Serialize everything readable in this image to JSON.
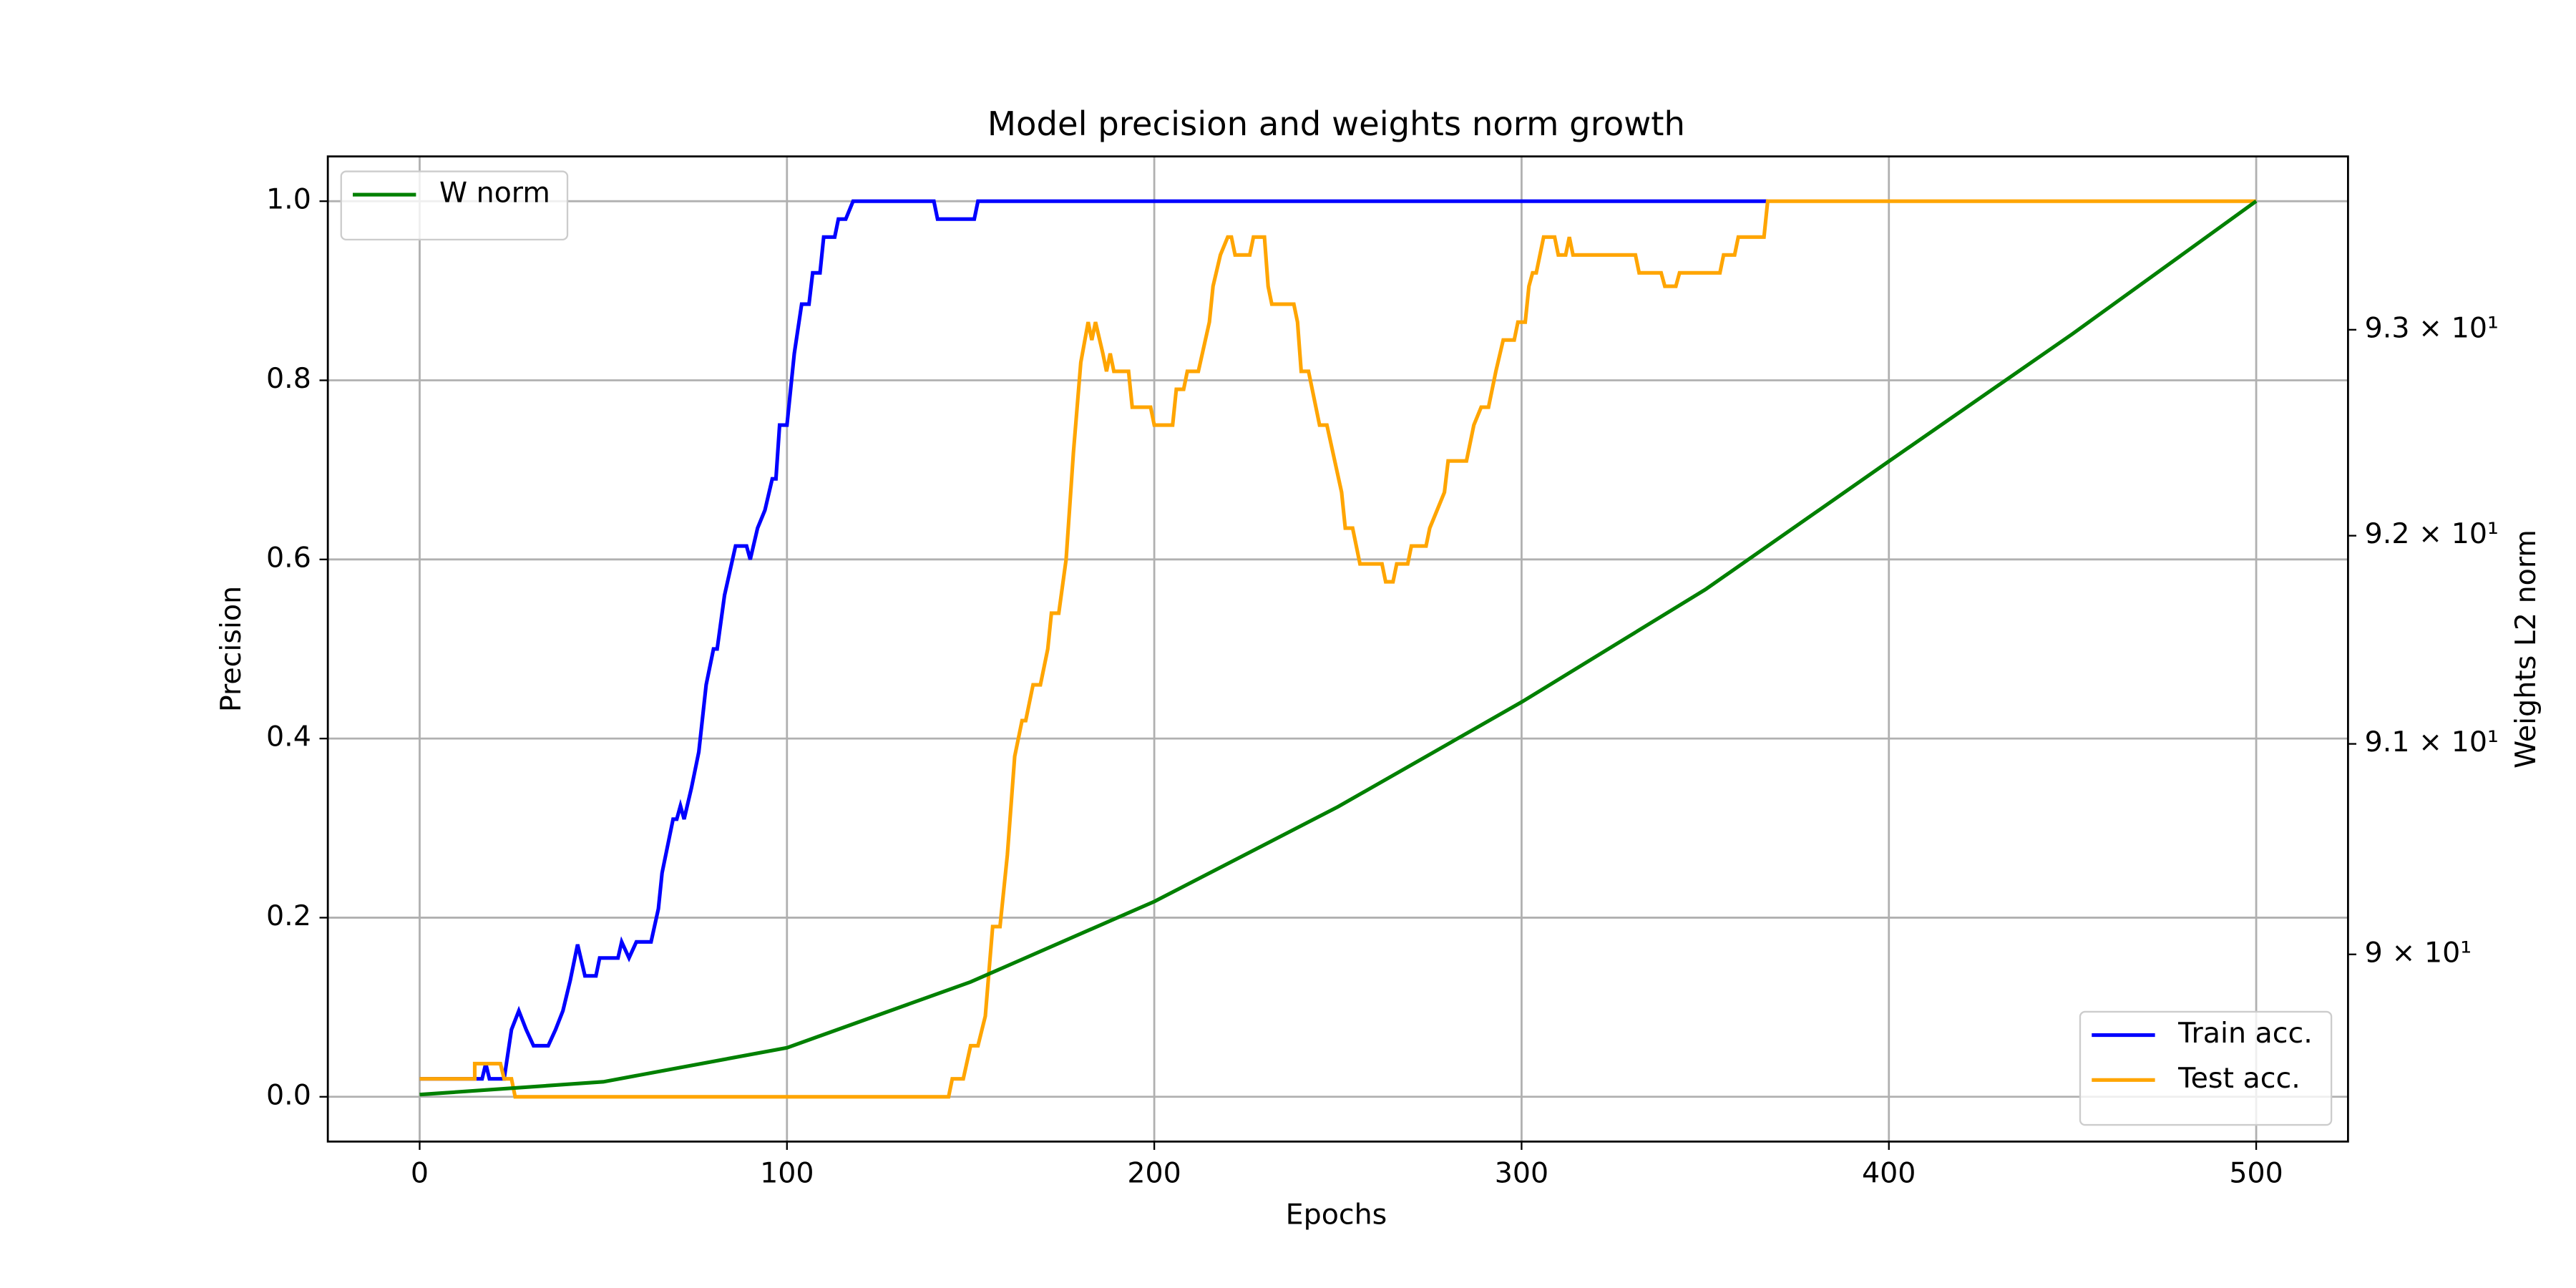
{
  "chart_data": {
    "type": "line",
    "title": "Model precision and weights norm growth",
    "x_label": "Epochs",
    "y_label": "Precision",
    "y2_label": "Weights L2 norm",
    "xlim": [
      -25,
      525
    ],
    "xticks": [
      0,
      100,
      200,
      300,
      400,
      500
    ],
    "ylim": [
      -0.05,
      1.05
    ],
    "yticks": [
      {
        "value": 0,
        "label": "0.0"
      },
      0.2,
      0.4,
      0.6,
      0.8,
      {
        "value": 1,
        "label": "1.0"
      }
    ],
    "y2lim": [
      89.12,
      93.85
    ],
    "y2scale": "log",
    "y2ticks": [
      {
        "value": 90,
        "label": "9 × 10¹"
      },
      {
        "value": 91,
        "label": "9.1 × 10¹"
      },
      {
        "value": 92,
        "label": "9.2 × 10¹"
      },
      {
        "value": 93,
        "label": "9.3 × 10¹"
      }
    ],
    "grid": true,
    "legend_y": "lower right",
    "legend_y2": "upper left",
    "series": [
      {
        "name": "Train acc.",
        "color": "#0000ff",
        "axis": "y",
        "x": [
          0,
          15,
          17,
          18,
          19,
          23,
          25,
          27,
          29,
          31,
          35,
          37,
          39,
          41,
          43,
          45,
          48,
          49,
          54,
          55,
          57,
          59,
          63,
          65,
          66,
          69,
          70,
          71,
          72,
          74,
          76,
          78,
          80,
          81,
          83,
          86,
          89,
          90,
          92,
          94,
          96,
          97,
          98,
          100,
          101,
          102,
          104,
          106,
          107,
          109,
          110,
          113,
          114,
          116,
          118,
          140,
          141,
          151,
          152,
          367
        ],
        "values": [
          0.02,
          0.02,
          0.02,
          0.037,
          0.02,
          0.02,
          0.075,
          0.096,
          0.075,
          0.057,
          0.057,
          0.075,
          0.096,
          0.13,
          0.17,
          0.135,
          0.135,
          0.155,
          0.155,
          0.173,
          0.155,
          0.173,
          0.173,
          0.21,
          0.25,
          0.31,
          0.31,
          0.325,
          0.31,
          0.345,
          0.385,
          0.46,
          0.5,
          0.5,
          0.56,
          0.615,
          0.615,
          0.6,
          0.635,
          0.655,
          0.69,
          0.69,
          0.75,
          0.75,
          0.79,
          0.83,
          0.885,
          0.885,
          0.92,
          0.92,
          0.96,
          0.96,
          0.98,
          0.98,
          1.0,
          1.0,
          0.98,
          0.98,
          1.0,
          1.0
        ]
      },
      {
        "name": "Test acc.",
        "color": "#ffa500",
        "axis": "y",
        "x": [
          0,
          15,
          15,
          22,
          23,
          25,
          26,
          144,
          145,
          148,
          150,
          152,
          154,
          156,
          158,
          160,
          162,
          164,
          165,
          167,
          169,
          171,
          172,
          174,
          176,
          178,
          180,
          182,
          183,
          184,
          186,
          187,
          188,
          189,
          193,
          194,
          199,
          200,
          205,
          206,
          208,
          209,
          212,
          215,
          216,
          218,
          220,
          221,
          222,
          226,
          227,
          230,
          231,
          232,
          238,
          239,
          240,
          242,
          244,
          245,
          247,
          251,
          252,
          254,
          256,
          262,
          263,
          265,
          266,
          269,
          270,
          274,
          275,
          277,
          279,
          280,
          285,
          287,
          289,
          291,
          292,
          293,
          295,
          298,
          299,
          301,
          302,
          303,
          304,
          306,
          309,
          310,
          312,
          313,
          314,
          331,
          332,
          338,
          339,
          342,
          343,
          354,
          355,
          358,
          359,
          366,
          367,
          500
        ],
        "values": [
          0.02,
          0.02,
          0.037,
          0.037,
          0.02,
          0.02,
          0.0,
          0.0,
          0.02,
          0.02,
          0.057,
          0.057,
          0.09,
          0.19,
          0.19,
          0.27,
          0.38,
          0.42,
          0.42,
          0.46,
          0.46,
          0.5,
          0.54,
          0.54,
          0.6,
          0.72,
          0.82,
          0.865,
          0.845,
          0.865,
          0.83,
          0.81,
          0.83,
          0.81,
          0.81,
          0.77,
          0.77,
          0.75,
          0.75,
          0.79,
          0.79,
          0.81,
          0.81,
          0.865,
          0.905,
          0.94,
          0.96,
          0.96,
          0.94,
          0.94,
          0.96,
          0.96,
          0.905,
          0.885,
          0.885,
          0.865,
          0.81,
          0.81,
          0.77,
          0.75,
          0.75,
          0.675,
          0.635,
          0.635,
          0.595,
          0.595,
          0.575,
          0.575,
          0.595,
          0.595,
          0.615,
          0.615,
          0.635,
          0.655,
          0.675,
          0.71,
          0.71,
          0.75,
          0.77,
          0.77,
          0.79,
          0.81,
          0.845,
          0.845,
          0.865,
          0.865,
          0.905,
          0.92,
          0.92,
          0.96,
          0.96,
          0.94,
          0.94,
          0.96,
          0.94,
          0.94,
          0.92,
          0.92,
          0.905,
          0.905,
          0.92,
          0.92,
          0.94,
          0.94,
          0.96,
          0.96,
          1.0,
          1.0
        ]
      },
      {
        "name": "W norm",
        "color": "#008000",
        "axis": "y2",
        "x": [
          0,
          50,
          100,
          150,
          200,
          250,
          300,
          350,
          400,
          450,
          500
        ],
        "values": [
          89.34,
          89.4,
          89.56,
          89.87,
          90.25,
          90.7,
          91.2,
          91.74,
          92.36,
          92.98,
          93.63
        ]
      }
    ]
  }
}
